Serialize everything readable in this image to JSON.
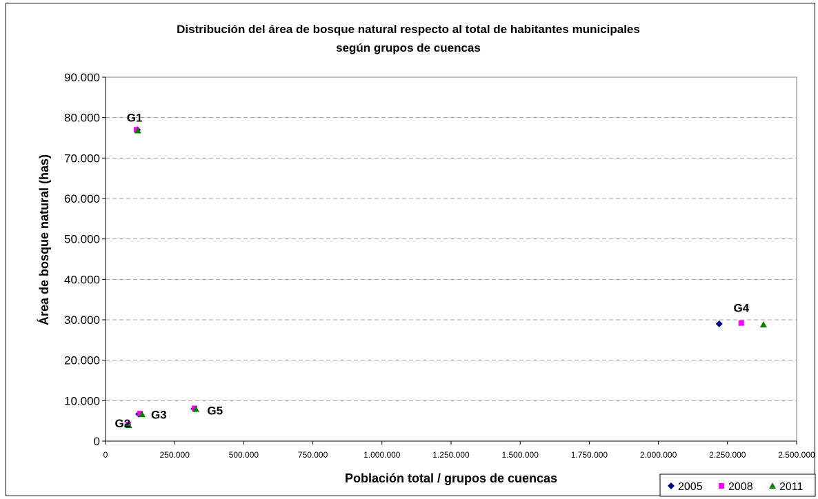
{
  "chart_data": {
    "type": "scatter",
    "title_line1": "Distribución del área de bosque natural respecto al total de habitantes municipales",
    "title_line2": "según grupos de cuencas",
    "xlabel": "Población total / grupos de cuencas",
    "ylabel": "Área de bosque natural (has)",
    "xlim": [
      0,
      2500000
    ],
    "ylim": [
      0,
      90000
    ],
    "x_ticks": [
      0,
      250000,
      500000,
      750000,
      1000000,
      1250000,
      1500000,
      1750000,
      2000000,
      2250000,
      2500000
    ],
    "x_tick_labels": [
      "0",
      "250.000",
      "500.000",
      "750.000",
      "1.000.000",
      "1.250.000",
      "1.500.000",
      "1.750.000",
      "2.000.000",
      "2.250.000",
      "2.500.000"
    ],
    "y_ticks": [
      0,
      10000,
      20000,
      30000,
      40000,
      50000,
      60000,
      70000,
      80000,
      90000
    ],
    "y_tick_labels": [
      "0",
      "10.000",
      "20.000",
      "30.000",
      "40.000",
      "50.000",
      "60.000",
      "70.000",
      "80.000",
      "90.000"
    ],
    "grid": "horizontal dashed",
    "legend_position": "bottom-right",
    "series": [
      {
        "name": "2005",
        "color": "#000080",
        "marker": "diamond",
        "points": [
          {
            "x": 115000,
            "y": 77000
          },
          {
            "x": 80000,
            "y": 4000
          },
          {
            "x": 120000,
            "y": 6700
          },
          {
            "x": 320000,
            "y": 8000
          },
          {
            "x": 2220000,
            "y": 29000
          }
        ]
      },
      {
        "name": "2008",
        "color": "#ff00ff",
        "marker": "square",
        "points": [
          {
            "x": 112000,
            "y": 77000
          },
          {
            "x": 82000,
            "y": 4100
          },
          {
            "x": 125000,
            "y": 6800
          },
          {
            "x": 322000,
            "y": 8100
          },
          {
            "x": 2300000,
            "y": 29200
          }
        ]
      },
      {
        "name": "2011",
        "color": "#008000",
        "marker": "triangle",
        "points": [
          {
            "x": 117000,
            "y": 76800
          },
          {
            "x": 84000,
            "y": 3900
          },
          {
            "x": 132000,
            "y": 6600
          },
          {
            "x": 327000,
            "y": 7900
          },
          {
            "x": 2380000,
            "y": 28800
          }
        ]
      }
    ],
    "annotations": [
      {
        "text": "G1",
        "x": 105000,
        "y": 80000
      },
      {
        "text": "G2",
        "x": 62000,
        "y": 4400
      },
      {
        "text": "G3",
        "x": 193000,
        "y": 6600
      },
      {
        "text": "G5",
        "x": 396000,
        "y": 7600
      },
      {
        "text": "G4",
        "x": 2300000,
        "y": 33000
      }
    ]
  }
}
